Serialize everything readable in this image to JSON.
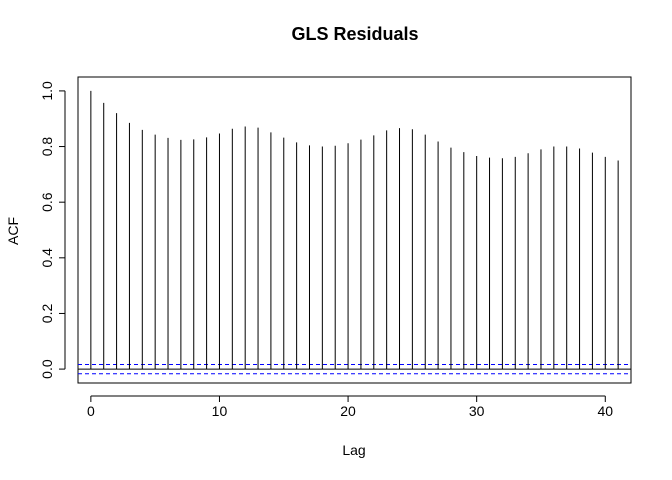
{
  "chart_data": {
    "type": "bar",
    "title": "GLS Residuals",
    "xlabel": "Lag",
    "ylabel": "ACF",
    "xlim": [
      -1,
      42
    ],
    "ylim": [
      -0.05,
      1.05
    ],
    "x_ticks": [
      0,
      10,
      20,
      30,
      40
    ],
    "x_tick_labels": [
      "0",
      "10",
      "20",
      "30",
      "40"
    ],
    "y_ticks": [
      0.0,
      0.2,
      0.4,
      0.6,
      0.8,
      1.0
    ],
    "y_tick_labels": [
      "0.0",
      "0.2",
      "0.4",
      "0.6",
      "0.8",
      "1.0"
    ],
    "lags": [
      0,
      1,
      2,
      3,
      4,
      5,
      6,
      7,
      8,
      9,
      10,
      11,
      12,
      13,
      14,
      15,
      16,
      17,
      18,
      19,
      20,
      21,
      22,
      23,
      24,
      25,
      26,
      27,
      28,
      29,
      30,
      31,
      32,
      33,
      34,
      35,
      36,
      37,
      38,
      39,
      40,
      41
    ],
    "acf": [
      1.0,
      0.957,
      0.92,
      0.885,
      0.86,
      0.843,
      0.831,
      0.824,
      0.826,
      0.833,
      0.847,
      0.864,
      0.872,
      0.868,
      0.851,
      0.832,
      0.815,
      0.804,
      0.8,
      0.803,
      0.812,
      0.825,
      0.84,
      0.858,
      0.866,
      0.862,
      0.843,
      0.818,
      0.796,
      0.78,
      0.766,
      0.76,
      0.758,
      0.763,
      0.776,
      0.79,
      0.8,
      0.8,
      0.793,
      0.778,
      0.763,
      0.75
    ],
    "confidence_bound": 0.0166,
    "colors": {
      "bars": "#000000",
      "confidence": "#0000ff",
      "zero_line": "#000000"
    }
  }
}
